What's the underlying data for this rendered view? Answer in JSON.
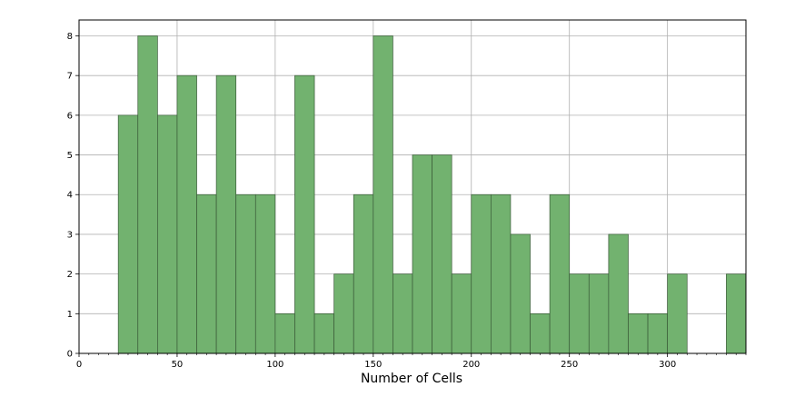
{
  "chart_data": {
    "type": "bar",
    "title": "",
    "xlabel": "Number of Cells",
    "ylabel": "",
    "xlim": [
      0,
      340
    ],
    "ylim": [
      0,
      8.4
    ],
    "bin_width": 10,
    "bins": [
      {
        "x0": 20,
        "x1": 30,
        "count": 6
      },
      {
        "x0": 30,
        "x1": 40,
        "count": 8
      },
      {
        "x0": 40,
        "x1": 50,
        "count": 6
      },
      {
        "x0": 50,
        "x1": 60,
        "count": 7
      },
      {
        "x0": 60,
        "x1": 70,
        "count": 4
      },
      {
        "x0": 70,
        "x1": 80,
        "count": 7
      },
      {
        "x0": 80,
        "x1": 90,
        "count": 4
      },
      {
        "x0": 90,
        "x1": 100,
        "count": 4
      },
      {
        "x0": 100,
        "x1": 110,
        "count": 1
      },
      {
        "x0": 110,
        "x1": 120,
        "count": 7
      },
      {
        "x0": 120,
        "x1": 130,
        "count": 1
      },
      {
        "x0": 130,
        "x1": 140,
        "count": 2
      },
      {
        "x0": 140,
        "x1": 150,
        "count": 4
      },
      {
        "x0": 150,
        "x1": 160,
        "count": 8
      },
      {
        "x0": 160,
        "x1": 170,
        "count": 2
      },
      {
        "x0": 170,
        "x1": 180,
        "count": 5
      },
      {
        "x0": 180,
        "x1": 190,
        "count": 5
      },
      {
        "x0": 190,
        "x1": 200,
        "count": 2
      },
      {
        "x0": 200,
        "x1": 210,
        "count": 4
      },
      {
        "x0": 210,
        "x1": 220,
        "count": 4
      },
      {
        "x0": 220,
        "x1": 230,
        "count": 3
      },
      {
        "x0": 230,
        "x1": 240,
        "count": 1
      },
      {
        "x0": 240,
        "x1": 250,
        "count": 4
      },
      {
        "x0": 250,
        "x1": 260,
        "count": 2
      },
      {
        "x0": 260,
        "x1": 270,
        "count": 2
      },
      {
        "x0": 270,
        "x1": 280,
        "count": 3
      },
      {
        "x0": 280,
        "x1": 290,
        "count": 1
      },
      {
        "x0": 290,
        "x1": 300,
        "count": 1
      },
      {
        "x0": 300,
        "x1": 310,
        "count": 2
      },
      {
        "x0": 310,
        "x1": 320,
        "count": 0
      },
      {
        "x0": 320,
        "x1": 330,
        "count": 0
      },
      {
        "x0": 330,
        "x1": 340,
        "count": 2
      }
    ],
    "x_ticks": [
      0,
      50,
      100,
      150,
      200,
      250,
      300
    ],
    "y_ticks": [
      0,
      1,
      2,
      3,
      4,
      5,
      6,
      7,
      8
    ],
    "grid": true,
    "legend": "none",
    "colors": {
      "bar_fill": "#72b26f",
      "bar_edge": "#3a5a38",
      "grid": "#b0b0b0",
      "axis": "#000000"
    }
  }
}
